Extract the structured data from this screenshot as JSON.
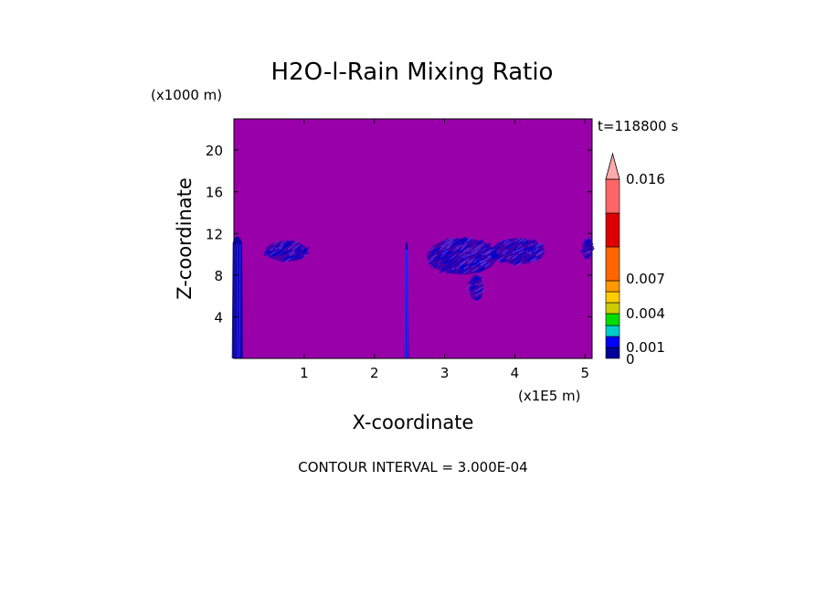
{
  "chart_data": {
    "type": "heatmap",
    "title": "H2O-l-Rain Mixing Ratio",
    "time_label": "t=118800 s",
    "xlabel": "X-coordinate",
    "ylabel": "Z-coordinate",
    "x_unit": "(x1E5 m)",
    "y_unit": "(x1000 m)",
    "xlim": [
      0,
      5.1
    ],
    "ylim": [
      0,
      23
    ],
    "x_ticks": [
      1,
      2,
      3,
      4,
      5
    ],
    "y_ticks": [
      4,
      8,
      12,
      16,
      20
    ],
    "footer": "CONTOUR INTERVAL = 3.000E-04",
    "background_color": "#9900aa",
    "colorbar": {
      "labels": [
        {
          "value": 0,
          "text": "0"
        },
        {
          "value": 0.001,
          "text": "0.001"
        },
        {
          "value": 0.004,
          "text": "0.004"
        },
        {
          "value": 0.007,
          "text": "0.007"
        },
        {
          "value": 0.016,
          "text": "0.016"
        }
      ],
      "colors": [
        "#000099",
        "#0000ff",
        "#00cccc",
        "#00dd00",
        "#cccc00",
        "#ffcc00",
        "#ff9900",
        "#ff6600",
        "#dd0000",
        "#ff6666",
        "#ffaaaa"
      ],
      "extend_color": "#ffaaaa"
    },
    "features": [
      {
        "kind": "column",
        "x_center": 0.05,
        "z_bottom": 0,
        "z_top": 12,
        "width": 0.16,
        "level": 0.0005
      },
      {
        "kind": "column",
        "x_center": 2.46,
        "z_bottom": 0,
        "z_top": 11.5,
        "width": 0.06,
        "level": 0.0005
      },
      {
        "kind": "patch",
        "x_center": 0.75,
        "z_center": 10.3,
        "width": 0.6,
        "height": 2.0,
        "level": 0.0003
      },
      {
        "kind": "patch",
        "x_center": 3.25,
        "z_center": 9.8,
        "width": 1.0,
        "height": 3.5,
        "level": 0.0005
      },
      {
        "kind": "patch",
        "x_center": 4.05,
        "z_center": 10.3,
        "width": 0.75,
        "height": 2.5,
        "level": 0.0004
      },
      {
        "kind": "patch",
        "x_center": 3.45,
        "z_center": 6.8,
        "width": 0.2,
        "height": 2.5,
        "level": 0.0005
      },
      {
        "kind": "patch",
        "x_center": 5.03,
        "z_center": 10.5,
        "width": 0.14,
        "height": 2.0,
        "level": 0.0003
      }
    ]
  }
}
